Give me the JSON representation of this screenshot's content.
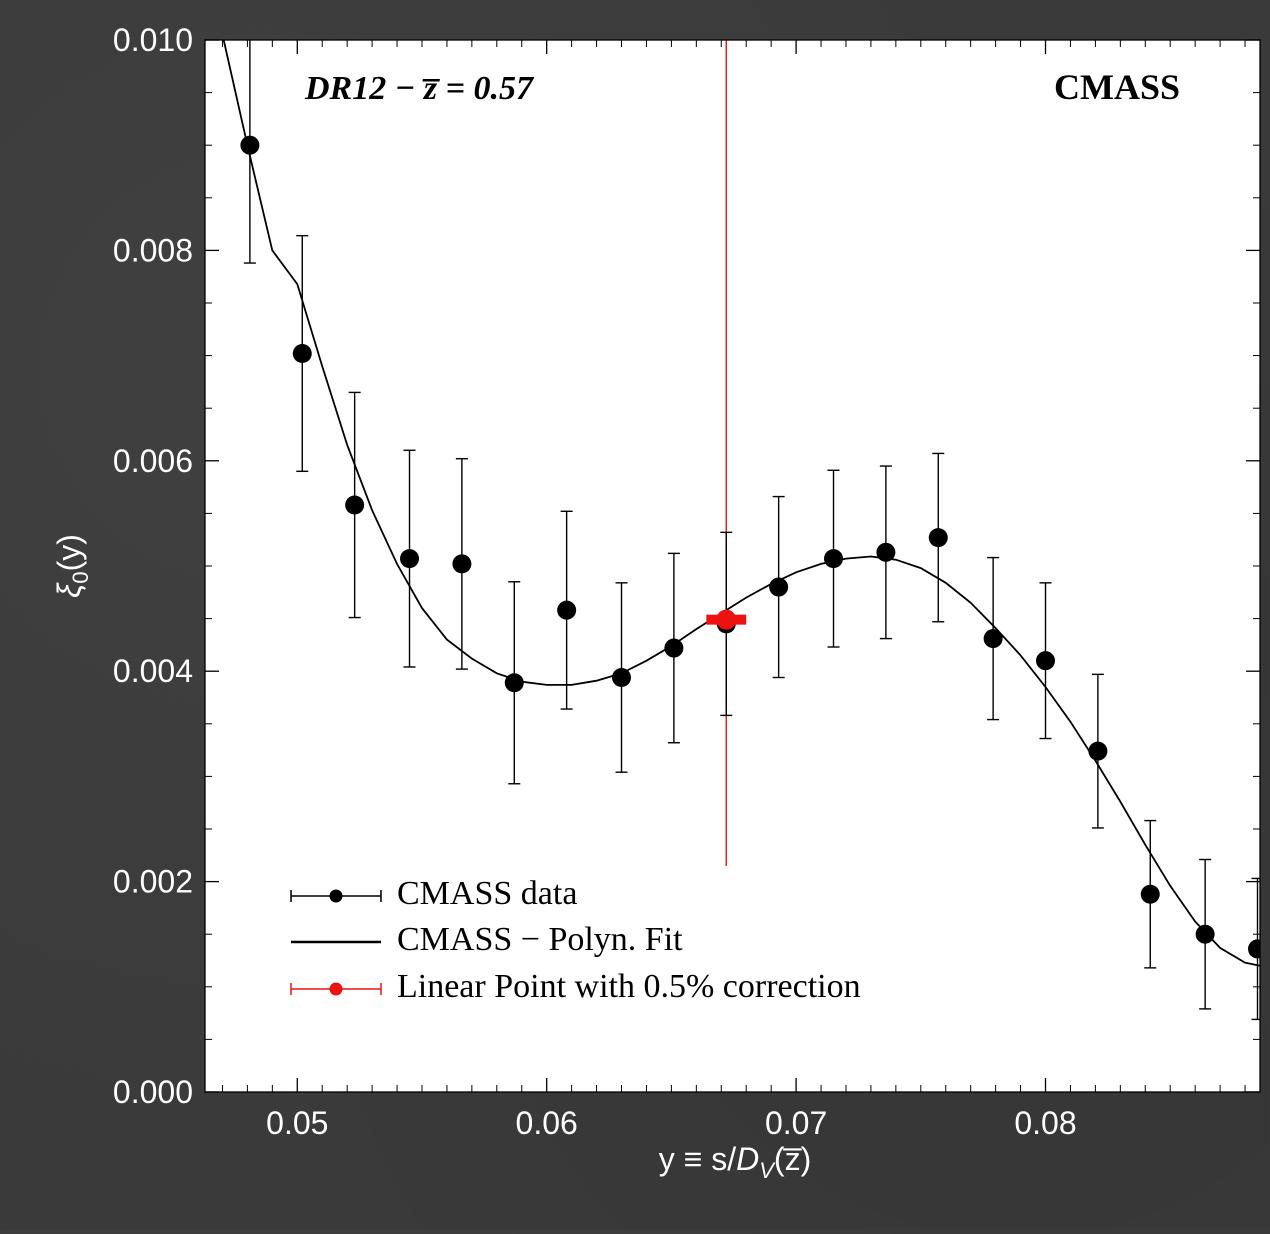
{
  "chart_data": {
    "type": "scatter",
    "annotation_left": "DR12  −  z̅ = 0.57",
    "annotation_right": "CMASS",
    "xlabel": "y ≡ s/D",
    "xlabel_sub": "V",
    "xlabel_tail": "(z̅)",
    "ylabel": "ξ",
    "ylabel_sub": "0",
    "ylabel_tail": "(y)",
    "xlim": [
      0.0463,
      0.0886
    ],
    "ylim": [
      0.0,
      0.01
    ],
    "x_ticks": [
      0.05,
      0.06,
      0.07,
      0.08
    ],
    "x_tick_labels": [
      "0.05",
      "0.06",
      "0.07",
      "0.08"
    ],
    "y_ticks": [
      0.0,
      0.002,
      0.004,
      0.006,
      0.008,
      0.01
    ],
    "y_tick_labels": [
      "0.000",
      "0.002",
      "0.004",
      "0.006",
      "0.008",
      "0.010"
    ],
    "grid": false,
    "legend_position": "bottom-left",
    "legend": [
      "CMASS data",
      "CMASS − Polyn. Fit",
      "Linear Point with 0.5% correction"
    ],
    "series": [
      {
        "name": "CMASS data",
        "color": "#000000",
        "points": [
          {
            "x": 0.0481,
            "y": 0.009,
            "err": 0.00112
          },
          {
            "x": 0.0502,
            "y": 0.00702,
            "err": 0.00112
          },
          {
            "x": 0.0523,
            "y": 0.00558,
            "err": 0.00107
          },
          {
            "x": 0.0545,
            "y": 0.00507,
            "err": 0.00103
          },
          {
            "x": 0.0566,
            "y": 0.00502,
            "err": 0.001
          },
          {
            "x": 0.0587,
            "y": 0.00389,
            "err": 0.00096
          },
          {
            "x": 0.0608,
            "y": 0.00458,
            "err": 0.00094
          },
          {
            "x": 0.063,
            "y": 0.00394,
            "err": 0.0009
          },
          {
            "x": 0.0651,
            "y": 0.00422,
            "err": 0.0009
          },
          {
            "x": 0.0672,
            "y": 0.00445,
            "err": 0.00087
          },
          {
            "x": 0.0693,
            "y": 0.0048,
            "err": 0.00086
          },
          {
            "x": 0.0715,
            "y": 0.00507,
            "err": 0.00084
          },
          {
            "x": 0.0736,
            "y": 0.00513,
            "err": 0.00082
          },
          {
            "x": 0.0757,
            "y": 0.00527,
            "err": 0.0008
          },
          {
            "x": 0.0779,
            "y": 0.00431,
            "err": 0.00077
          },
          {
            "x": 0.08,
            "y": 0.0041,
            "err": 0.00074
          },
          {
            "x": 0.0821,
            "y": 0.00324,
            "err": 0.00073
          },
          {
            "x": 0.0842,
            "y": 0.00188,
            "err": 0.0007
          },
          {
            "x": 0.0864,
            "y": 0.0015,
            "err": 0.00071
          },
          {
            "x": 0.0885,
            "y": 0.00136,
            "err": 0.00067
          }
        ]
      },
      {
        "name": "CMASS − Polyn. Fit",
        "color": "#000000",
        "curve": [
          [
            0.047,
            0.01005
          ],
          [
            0.048,
            0.009
          ],
          [
            0.049,
            0.008
          ],
          [
            0.05,
            0.00768
          ],
          [
            0.051,
            0.0069
          ],
          [
            0.052,
            0.00615
          ],
          [
            0.053,
            0.00553
          ],
          [
            0.054,
            0.00502
          ],
          [
            0.055,
            0.0046
          ],
          [
            0.056,
            0.0043
          ],
          [
            0.057,
            0.00412
          ],
          [
            0.058,
            0.00398
          ],
          [
            0.059,
            0.0039
          ],
          [
            0.06,
            0.00387
          ],
          [
            0.061,
            0.00387
          ],
          [
            0.062,
            0.00391
          ],
          [
            0.063,
            0.00398
          ],
          [
            0.064,
            0.0041
          ],
          [
            0.065,
            0.00424
          ],
          [
            0.066,
            0.0044
          ],
          [
            0.067,
            0.00455
          ],
          [
            0.068,
            0.0047
          ],
          [
            0.069,
            0.00483
          ],
          [
            0.07,
            0.00494
          ],
          [
            0.071,
            0.00502
          ],
          [
            0.072,
            0.00507
          ],
          [
            0.073,
            0.00509
          ],
          [
            0.074,
            0.00506
          ],
          [
            0.075,
            0.00498
          ],
          [
            0.076,
            0.00484
          ],
          [
            0.077,
            0.00465
          ],
          [
            0.078,
            0.00441
          ],
          [
            0.079,
            0.00415
          ],
          [
            0.08,
            0.00385
          ],
          [
            0.081,
            0.00352
          ],
          [
            0.082,
            0.00315
          ],
          [
            0.083,
            0.00276
          ],
          [
            0.084,
            0.00235
          ],
          [
            0.085,
            0.00196
          ],
          [
            0.086,
            0.00162
          ],
          [
            0.087,
            0.00137
          ],
          [
            0.088,
            0.00123
          ],
          [
            0.0886,
            0.0012
          ]
        ]
      },
      {
        "name": "Linear Point with 0.5% correction",
        "color": "#ee1111",
        "points": [
          {
            "x": 0.0672,
            "y": 0.00449,
            "xerr": 0.0008
          }
        ],
        "vertical_line_x": 0.0672
      }
    ]
  }
}
